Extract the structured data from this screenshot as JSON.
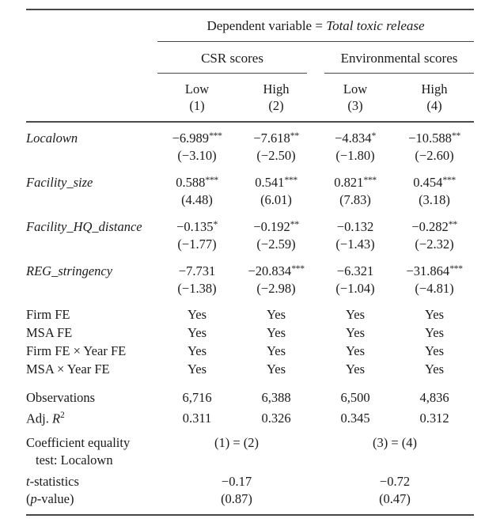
{
  "header": {
    "dep_var_prefix": "Dependent variable = ",
    "dep_var_name": "Total toxic release",
    "groups": [
      "CSR scores",
      "Environmental scores"
    ],
    "cols": [
      {
        "level": "Low",
        "num": "(1)"
      },
      {
        "level": "High",
        "num": "(2)"
      },
      {
        "level": "Low",
        "num": "(3)"
      },
      {
        "level": "High",
        "num": "(4)"
      }
    ]
  },
  "coefficients": [
    {
      "label": "Localown",
      "est": [
        {
          "v": "−6.989",
          "s": "***"
        },
        {
          "v": "−7.618",
          "s": "**"
        },
        {
          "v": "−4.834",
          "s": "*"
        },
        {
          "v": "−10.588",
          "s": "**"
        }
      ],
      "t": [
        "(−3.10)",
        "(−2.50)",
        "(−1.80)",
        "(−2.60)"
      ]
    },
    {
      "label": "Facility_size",
      "est": [
        {
          "v": "0.588",
          "s": "***"
        },
        {
          "v": "0.541",
          "s": "***"
        },
        {
          "v": "0.821",
          "s": "***"
        },
        {
          "v": "0.454",
          "s": "***"
        }
      ],
      "t": [
        "(4.48)",
        "(6.01)",
        "(7.83)",
        "(3.18)"
      ]
    },
    {
      "label": "Facility_HQ_distance",
      "est": [
        {
          "v": "−0.135",
          "s": "*"
        },
        {
          "v": "−0.192",
          "s": "**"
        },
        {
          "v": "−0.132",
          "s": ""
        },
        {
          "v": "−0.282",
          "s": "**"
        }
      ],
      "t": [
        "(−1.77)",
        "(−2.59)",
        "(−1.43)",
        "(−2.32)"
      ]
    },
    {
      "label": "REG_stringency",
      "est": [
        {
          "v": "−7.731",
          "s": ""
        },
        {
          "v": "−20.834",
          "s": "***"
        },
        {
          "v": "−6.321",
          "s": ""
        },
        {
          "v": "−31.864",
          "s": "***"
        }
      ],
      "t": [
        "(−1.38)",
        "(−2.98)",
        "(−1.04)",
        "(−4.81)"
      ]
    }
  ],
  "fixed_effects": [
    {
      "label": "Firm FE",
      "values": [
        "Yes",
        "Yes",
        "Yes",
        "Yes"
      ]
    },
    {
      "label": "MSA FE",
      "values": [
        "Yes",
        "Yes",
        "Yes",
        "Yes"
      ]
    },
    {
      "label": "Firm FE × Year FE",
      "values": [
        "Yes",
        "Yes",
        "Yes",
        "Yes"
      ]
    },
    {
      "label": "MSA × Year FE",
      "values": [
        "Yes",
        "Yes",
        "Yes",
        "Yes"
      ]
    }
  ],
  "stats": {
    "observations": {
      "label": "Observations",
      "values": [
        "6,716",
        "6,388",
        "6,500",
        "4,836"
      ]
    },
    "adj_r2": {
      "label_prefix": "Adj. ",
      "label_symbol": "R",
      "label_sup": "2",
      "values": [
        "0.311",
        "0.326",
        "0.345",
        "0.312"
      ]
    }
  },
  "equality_test": {
    "label_line1": "Coefficient equality",
    "label_line2": "test: Localown",
    "comparisons": [
      "(1) = (2)",
      "(3) = (4)"
    ],
    "t_label_italic": "t",
    "t_label_rest": "-statistics",
    "t_values": [
      "−0.17",
      "−0.72"
    ],
    "p_label_open": "(",
    "p_label_italic": "p",
    "p_label_rest": "-value)",
    "p_values": [
      "(0.87)",
      "(0.47)"
    ]
  }
}
